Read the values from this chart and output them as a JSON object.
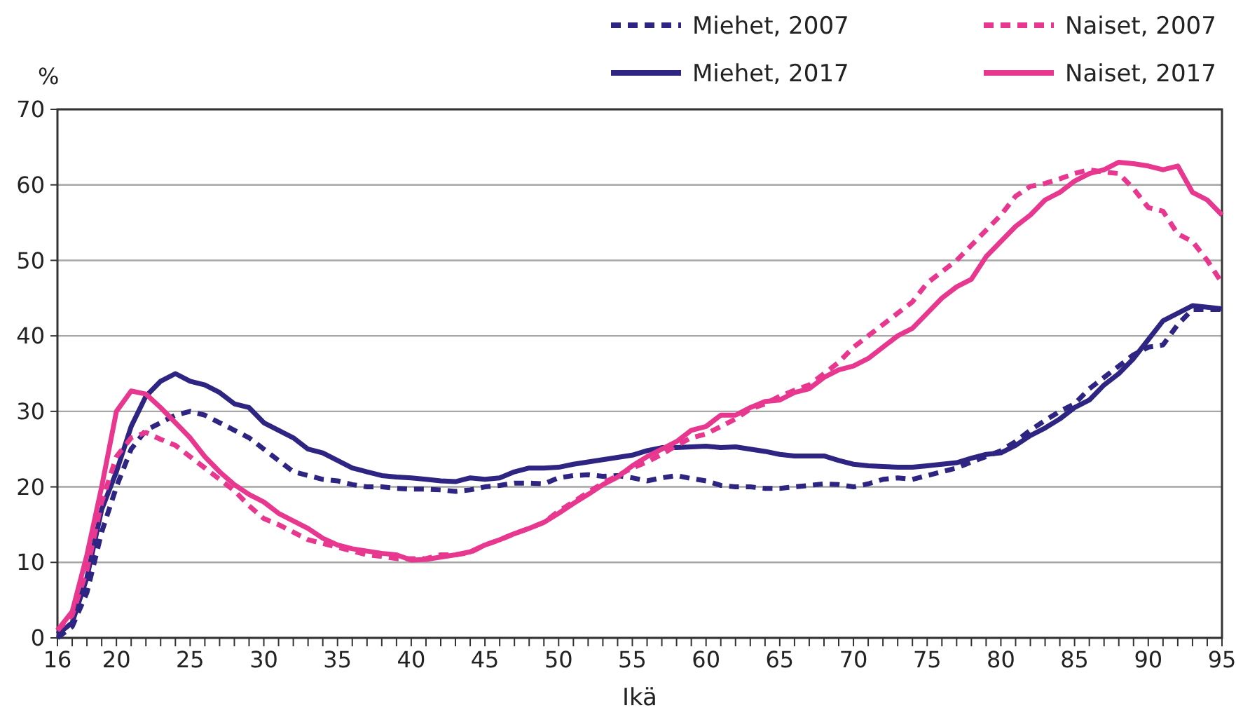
{
  "chart_data": {
    "type": "line",
    "xlabel": "Ikä",
    "ylabel": "%",
    "xlim": [
      16,
      95
    ],
    "ylim": [
      0,
      70
    ],
    "yticks": [
      0,
      10,
      20,
      30,
      40,
      50,
      60,
      70
    ],
    "xticks": [
      16,
      {
        "value": 17,
        "label": null
      },
      {
        "value": 18,
        "label": null
      },
      {
        "value": 19,
        "label": null
      },
      20,
      {
        "value": 21,
        "label": null
      },
      {
        "value": 22,
        "label": null
      },
      {
        "value": 23,
        "label": null
      },
      {
        "value": 24,
        "label": null
      },
      25,
      {
        "value": 26,
        "label": null
      },
      {
        "value": 27,
        "label": null
      },
      {
        "value": 28,
        "label": null
      },
      {
        "value": 29,
        "label": null
      },
      30,
      {
        "value": 31,
        "label": null
      },
      {
        "value": 32,
        "label": null
      },
      {
        "value": 33,
        "label": null
      },
      {
        "value": 34,
        "label": null
      },
      35,
      {
        "value": 36,
        "label": null
      },
      {
        "value": 37,
        "label": null
      },
      {
        "value": 38,
        "label": null
      },
      {
        "value": 39,
        "label": null
      },
      40,
      {
        "value": 41,
        "label": null
      },
      {
        "value": 42,
        "label": null
      },
      {
        "value": 43,
        "label": null
      },
      {
        "value": 44,
        "label": null
      },
      45,
      {
        "value": 46,
        "label": null
      },
      {
        "value": 47,
        "label": null
      },
      {
        "value": 48,
        "label": null
      },
      {
        "value": 49,
        "label": null
      },
      50,
      {
        "value": 51,
        "label": null
      },
      {
        "value": 52,
        "label": null
      },
      {
        "value": 53,
        "label": null
      },
      {
        "value": 54,
        "label": null
      },
      55,
      {
        "value": 56,
        "label": null
      },
      {
        "value": 57,
        "label": null
      },
      {
        "value": 58,
        "label": null
      },
      {
        "value": 59,
        "label": null
      },
      60,
      {
        "value": 61,
        "label": null
      },
      {
        "value": 62,
        "label": null
      },
      {
        "value": 63,
        "label": null
      },
      {
        "value": 64,
        "label": null
      },
      65,
      {
        "value": 66,
        "label": null
      },
      {
        "value": 67,
        "label": null
      },
      {
        "value": 68,
        "label": null
      },
      {
        "value": 69,
        "label": null
      },
      70,
      {
        "value": 71,
        "label": null
      },
      {
        "value": 72,
        "label": null
      },
      {
        "value": 73,
        "label": null
      },
      {
        "value": 74,
        "label": null
      },
      75,
      {
        "value": 76,
        "label": null
      },
      {
        "value": 77,
        "label": null
      },
      {
        "value": 78,
        "label": null
      },
      {
        "value": 79,
        "label": null
      },
      80,
      {
        "value": 81,
        "label": null
      },
      {
        "value": 82,
        "label": null
      },
      {
        "value": 83,
        "label": null
      },
      {
        "value": 84,
        "label": null
      },
      85,
      {
        "value": 86,
        "label": null
      },
      {
        "value": 87,
        "label": null
      },
      {
        "value": 88,
        "label": null
      },
      {
        "value": 89,
        "label": null
      },
      90,
      {
        "value": 91,
        "label": null
      },
      {
        "value": 92,
        "label": null
      },
      {
        "value": 93,
        "label": null
      },
      {
        "value": 94,
        "label": null
      },
      95
    ],
    "grid": "y",
    "legend": "top right",
    "marker": "none",
    "x": [
      16,
      17,
      18,
      19,
      20,
      21,
      22,
      23,
      24,
      25,
      26,
      27,
      28,
      29,
      30,
      31,
      32,
      33,
      34,
      35,
      36,
      37,
      38,
      39,
      40,
      41,
      42,
      43,
      44,
      45,
      46,
      47,
      48,
      49,
      50,
      51,
      52,
      53,
      54,
      55,
      56,
      57,
      58,
      59,
      60,
      61,
      62,
      63,
      64,
      65,
      66,
      67,
      68,
      69,
      70,
      71,
      72,
      73,
      74,
      75,
      76,
      77,
      78,
      79,
      80,
      81,
      82,
      83,
      84,
      85,
      86,
      87,
      88,
      89,
      90,
      91,
      92,
      93,
      94,
      95
    ],
    "series": [
      {
        "name": "Miehet, 2007",
        "color": "#2e2482",
        "line_style": "dashed",
        "values": [
          0,
          1.5,
          6,
          14,
          20,
          25,
          27.5,
          28.5,
          29.5,
          30,
          29.5,
          28.5,
          27.5,
          26.5,
          25,
          23.5,
          22,
          21.5,
          21,
          20.8,
          20.3,
          20,
          20,
          19.8,
          19.7,
          19.7,
          19.6,
          19.4,
          19.6,
          20,
          20.2,
          20.5,
          20.5,
          20.4,
          21.2,
          21.5,
          21.6,
          21.4,
          21.5,
          21.2,
          20.8,
          21.2,
          21.5,
          21.1,
          20.8,
          20.2,
          20,
          20,
          19.8,
          19.8,
          20,
          20.2,
          20.4,
          20.3,
          20,
          20.4,
          21,
          21.2,
          21,
          21.5,
          22,
          22.5,
          23.3,
          24,
          24.8,
          26,
          27.5,
          28.8,
          30,
          31,
          33,
          34.5,
          36,
          37.5,
          38.5,
          38.8,
          41.5,
          43.5,
          43.5,
          43.5
        ]
      },
      {
        "name": "Miehet, 2017",
        "color": "#2e2482",
        "line_style": "solid",
        "values": [
          0.5,
          2,
          8,
          17,
          22,
          28,
          32,
          34,
          35,
          34,
          33.5,
          32.5,
          31,
          30.5,
          28.5,
          27.5,
          26.5,
          25,
          24.5,
          23.5,
          22.5,
          22,
          21.5,
          21.3,
          21.2,
          21,
          20.8,
          20.7,
          21.2,
          21,
          21.2,
          22,
          22.5,
          22.5,
          22.6,
          23,
          23.3,
          23.6,
          23.9,
          24.2,
          24.8,
          25.2,
          25.2,
          25.3,
          25.4,
          25.2,
          25.3,
          25,
          24.7,
          24.3,
          24.1,
          24.1,
          24.1,
          23.5,
          23,
          22.8,
          22.7,
          22.6,
          22.6,
          22.8,
          23,
          23.2,
          23.8,
          24.3,
          24.5,
          25.5,
          26.8,
          27.8,
          29,
          30.5,
          31.5,
          33.5,
          35,
          37,
          39.5,
          42,
          43,
          44,
          43.8,
          43.6
        ]
      },
      {
        "name": "Naiset, 2007",
        "color": "#e8378f",
        "line_style": "dashed",
        "values": [
          1,
          3,
          9,
          18,
          24,
          26.5,
          27.2,
          26.3,
          25.5,
          24,
          22.5,
          21,
          19.5,
          17.5,
          15.8,
          15,
          14,
          13,
          12.5,
          12,
          11.5,
          11,
          10.8,
          10.5,
          10.5,
          10.5,
          11,
          11,
          11.3,
          12.3,
          13,
          13.8,
          14.5,
          15.3,
          16.8,
          18,
          19.3,
          20.5,
          21.5,
          22.5,
          23.3,
          24.3,
          25.5,
          26.5,
          27,
          28,
          29,
          30.3,
          31,
          32,
          32.8,
          33.5,
          35,
          36.5,
          38.5,
          40,
          41.5,
          43,
          44.5,
          47,
          48.5,
          50,
          52,
          54,
          56,
          58.5,
          59.8,
          60.2,
          60.8,
          61.5,
          62,
          61.7,
          61.5,
          59.5,
          57,
          56.5,
          53.5,
          52.5,
          50,
          47
        ]
      },
      {
        "name": "Naiset, 2017",
        "color": "#e8378f",
        "line_style": "solid",
        "values": [
          1,
          3.5,
          11,
          20,
          30,
          32.7,
          32.3,
          30.5,
          28.5,
          26.5,
          24,
          22,
          20.3,
          19,
          18,
          16.5,
          15.5,
          14.5,
          13.2,
          12.3,
          11.8,
          11.5,
          11.2,
          11,
          10.3,
          10.4,
          10.7,
          11,
          11.4,
          12.3,
          13,
          13.8,
          14.5,
          15.3,
          16.5,
          17.8,
          19,
          20.3,
          21.3,
          22.8,
          24,
          25,
          26,
          27.5,
          28,
          29.5,
          29.5,
          30.5,
          31.3,
          31.5,
          32.5,
          33,
          34.5,
          35.5,
          36,
          37,
          38.5,
          40,
          41,
          43,
          45,
          46.5,
          47.5,
          50.5,
          52.5,
          54.5,
          56,
          58,
          59,
          60.5,
          61.5,
          62,
          63,
          62.8,
          62.5,
          62,
          62.5,
          59,
          58,
          56
        ]
      }
    ]
  }
}
